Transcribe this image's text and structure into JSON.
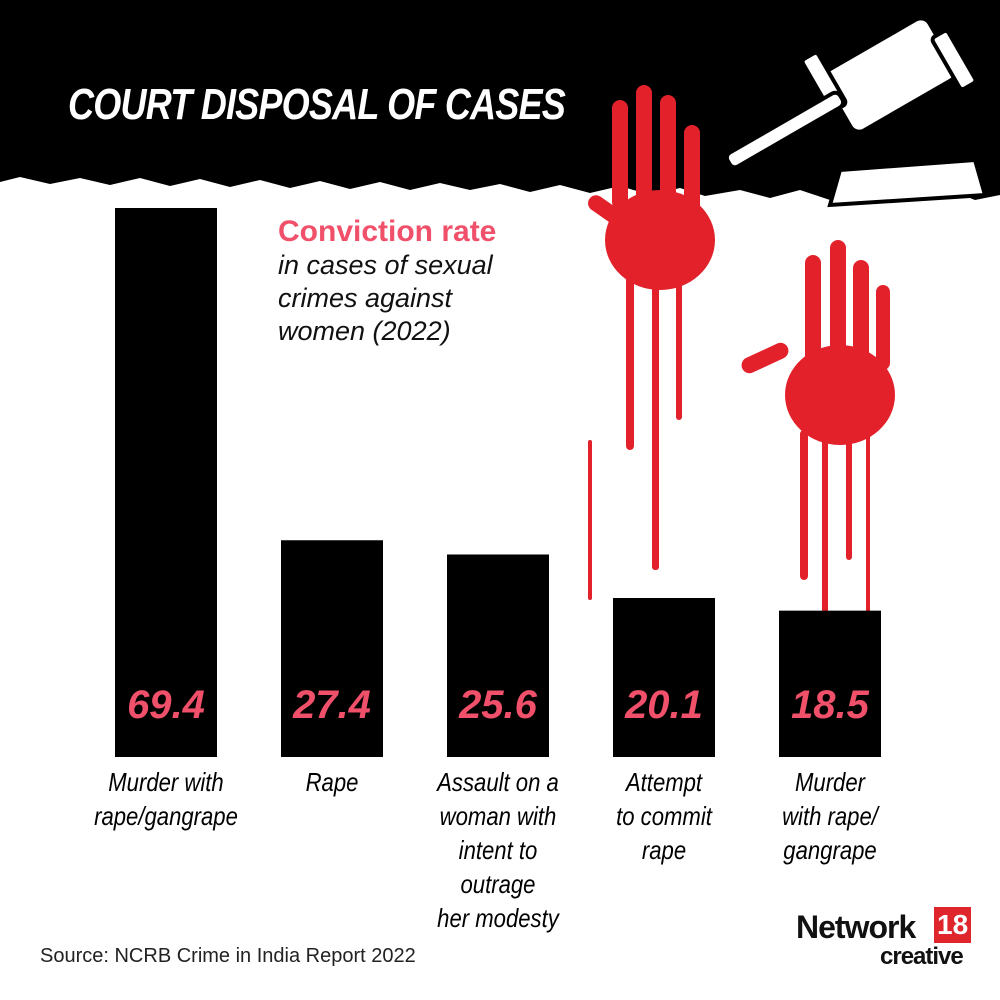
{
  "title": "COURT DISPOSAL OF CASES",
  "subtitle": {
    "highlight": "Conviction rate",
    "lines": [
      "in cases of sexual",
      "crimes against",
      "women (2022)"
    ]
  },
  "source": "Source: NCRB Crime in India Report 2022",
  "logo": {
    "network": "Network",
    "number": "18",
    "creative": "creative"
  },
  "colors": {
    "bar": "#000000",
    "value_text": "#f0506a",
    "accent": "#f0506a",
    "blood": "#e3212b",
    "logo_red": "#e0262d"
  },
  "icons": [
    "gavel-icon",
    "handprint-icon"
  ],
  "chart_data": {
    "type": "bar",
    "title": "COURT DISPOSAL OF CASES",
    "subtitle": "Conviction rate in cases of sexual crimes against women (2022)",
    "categories": [
      [
        "Murder with",
        "rape/gangrape"
      ],
      [
        "Rape"
      ],
      [
        "Assault on a",
        "woman with",
        "intent to outrage",
        "her modesty"
      ],
      [
        "Attempt",
        "to commit",
        "rape"
      ],
      [
        "Murder",
        "with rape/",
        "gangrape"
      ]
    ],
    "values": [
      69.4,
      27.4,
      25.6,
      20.1,
      18.5
    ],
    "value_labels": [
      "69.4",
      "27.4",
      "25.6",
      "20.1",
      "18.5"
    ],
    "ylim": [
      0,
      69.4
    ],
    "grid": false,
    "legend": "none"
  }
}
